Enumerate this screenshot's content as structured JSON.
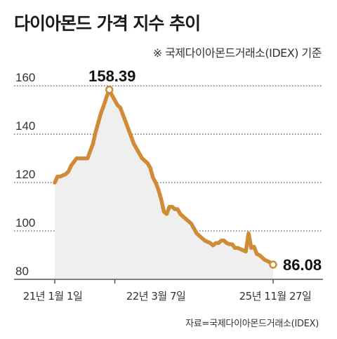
{
  "title": "다이아몬드 가격 지수 추이",
  "note": "※ 국제다이아몬드거래소(IDEX) 기준",
  "source": "자료=국제다이아몬드거래소(IDEX)",
  "colors": {
    "line": "#d08b37",
    "area": "#efefef",
    "grid": "#333333",
    "axis": "#555555"
  },
  "chart_data": {
    "type": "area",
    "title": "다이아몬드 가격 지수 추이",
    "ylim": [
      80,
      165
    ],
    "yticks": [
      "160",
      "140",
      "120",
      "100",
      "80"
    ],
    "ytick_values": [
      160,
      140,
      120,
      100,
      80
    ],
    "xticks": [
      {
        "label": "21년 1월 1일",
        "index": 0
      },
      {
        "label": "22년 3월 7일",
        "index": 22
      },
      {
        "label": "25년 11월 27일",
        "index": 80
      }
    ],
    "grid": true,
    "series": [
      {
        "values": [
          120,
          122.5,
          122.5,
          123,
          123.5,
          124.5,
          127,
          128.5,
          130,
          130,
          130,
          130,
          130,
          133,
          136,
          141,
          145,
          149,
          152,
          155.5,
          158.39,
          156,
          154,
          152,
          151,
          148,
          145,
          142,
          139,
          136,
          134,
          132,
          130,
          129,
          128,
          126,
          122,
          120,
          117,
          113,
          108,
          107,
          110,
          110,
          109,
          109,
          107,
          106,
          105,
          104,
          103,
          101,
          99,
          98,
          97,
          96,
          95.5,
          95,
          94,
          95,
          95,
          96,
          96,
          95,
          94.5,
          94.5,
          93,
          93,
          92.5,
          92,
          91.5,
          99,
          93,
          93.5,
          90.5,
          90,
          89,
          88,
          87.5,
          87,
          86.08
        ]
      }
    ],
    "annotations": [
      {
        "text": "158.39",
        "index": 20,
        "value": 158.39
      },
      {
        "text": "86.08",
        "index": 80,
        "value": 86.08
      }
    ]
  }
}
